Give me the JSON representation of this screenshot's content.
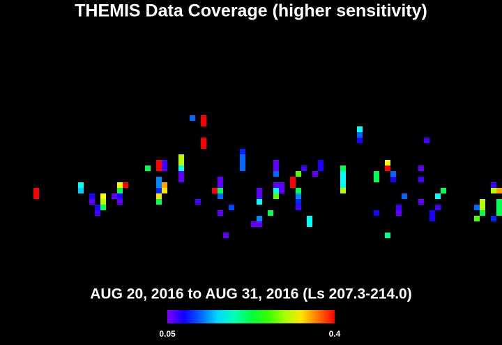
{
  "chart_data": {
    "type": "coverage-map",
    "title": "THEMIS Data Coverage (higher sensitivity)",
    "subtitle": "AUG 20, 2016 to AUG 31, 2016 (Ls 207.3-214.0)",
    "xlim": [
      0,
      360
    ],
    "ylim": [
      -90,
      90
    ],
    "clim": [
      0.05,
      0.4
    ],
    "lon": [
      24,
      24,
      56,
      56,
      64,
      64,
      68,
      68,
      72,
      72,
      72,
      80,
      84,
      84,
      84,
      88,
      84,
      104,
      112,
      112,
      116,
      116,
      112,
      112,
      112,
      112,
      112,
      116,
      116,
      128,
      128,
      128,
      128,
      128,
      136,
      144,
      144,
      144,
      144,
      140,
      152,
      156,
      156,
      156,
      156,
      156,
      164,
      160,
      172,
      172,
      172,
      172,
      184,
      184,
      184,
      180,
      184,
      184,
      192,
      196,
      196,
      196,
      196,
      200,
      196,
      200,
      196,
      208,
      208,
      212,
      212,
      212,
      212,
      212,
      216,
      220,
      220,
      224,
      228,
      228,
      244,
      244,
      244,
      244,
      244,
      256,
      256,
      256,
      268,
      268,
      268,
      276,
      276,
      276,
      280,
      280,
      288,
      284,
      284,
      300,
      300,
      300,
      304,
      308,
      308,
      312,
      312,
      316,
      340,
      340,
      344,
      344,
      344,
      352,
      352,
      356,
      352,
      356,
      356,
      356
    ],
    "lat": [
      -11,
      -15,
      -7,
      -11,
      -15,
      -19,
      -23,
      -27,
      -15,
      -19,
      -23,
      -15,
      -15,
      -19,
      -7,
      -7,
      -11,
      5,
      9,
      5,
      9,
      5,
      -3,
      -7,
      -11,
      -15,
      -19,
      -7,
      -11,
      13,
      9,
      5,
      1,
      -3,
      41,
      41,
      37,
      25,
      21,
      -19,
      -11,
      -3,
      -7,
      -11,
      -15,
      -27,
      -23,
      -43,
      17,
      13,
      9,
      5,
      -11,
      -15,
      -19,
      -35,
      -31,
      -35,
      -27,
      9,
      5,
      1,
      -7,
      -7,
      -11,
      -11,
      -15,
      -3,
      -7,
      1,
      -11,
      -15,
      -19,
      -23,
      5,
      -31,
      -35,
      1,
      9,
      5,
      5,
      1,
      -3,
      -7,
      -11,
      33,
      29,
      25,
      -27,
      1,
      -3,
      9,
      5,
      -43,
      1,
      -3,
      -15,
      -23,
      -27,
      5,
      -3,
      -19,
      25,
      -27,
      -31,
      -15,
      -23,
      -11,
      -23,
      -31,
      -19,
      -23,
      -27,
      -7,
      -11,
      -11,
      -31,
      -19,
      -23,
      -27
    ],
    "values": [
      0.4,
      0.4,
      0.17,
      0.15,
      0.08,
      0.06,
      0.08,
      0.07,
      0.32,
      0.3,
      0.22,
      0.06,
      0.08,
      0.06,
      0.32,
      0.4,
      0.22,
      0.22,
      0.4,
      0.4,
      0.07,
      0.07,
      0.13,
      0.13,
      0.1,
      0.33,
      0.22,
      0.35,
      0.33,
      0.3,
      0.3,
      0.17,
      0.06,
      0.06,
      0.12,
      0.4,
      0.4,
      0.4,
      0.4,
      0.07,
      0.4,
      0.06,
      0.06,
      0.22,
      0.12,
      0.06,
      0.11,
      0.06,
      0.1,
      0.12,
      0.12,
      0.12,
      0.06,
      0.06,
      0.17,
      0.06,
      0.13,
      0.06,
      0.22,
      0.06,
      0.06,
      0.12,
      0.06,
      0.06,
      0.17,
      0.06,
      0.27,
      0.4,
      0.4,
      0.27,
      0.22,
      0.13,
      0.1,
      0.07,
      0.07,
      0.17,
      0.17,
      0.06,
      0.08,
      0.08,
      0.22,
      0.17,
      0.17,
      0.17,
      0.3,
      0.17,
      0.12,
      0.08,
      0.08,
      0.22,
      0.22,
      0.32,
      0.4,
      0.2,
      0.12,
      0.08,
      0.12,
      0.07,
      0.06,
      0.06,
      0.07,
      0.06,
      0.07,
      0.08,
      0.08,
      0.17,
      0.07,
      0.22,
      0.12,
      0.27,
      0.3,
      0.3,
      0.22,
      0.07,
      0.3,
      0.35,
      0.1,
      0.22,
      0.22,
      0.22
    ]
  }
}
